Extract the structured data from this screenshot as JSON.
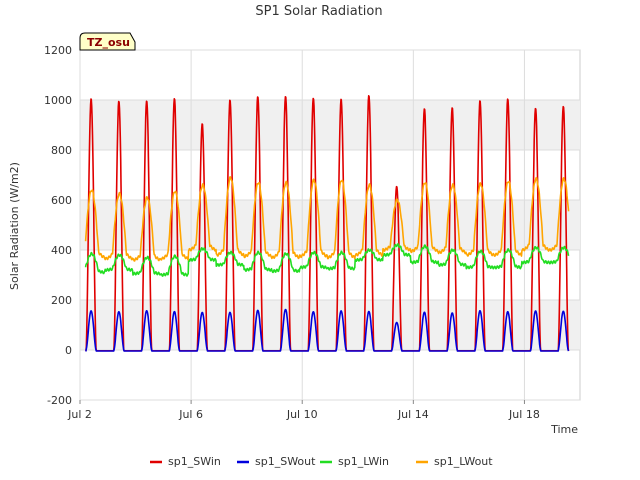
{
  "chart_data": {
    "type": "line",
    "title": "SP1 Solar Radiation",
    "xlabel": "Time",
    "ylabel": "Solar Radiation (W/m2)",
    "badge": "TZ_osu",
    "ylim": [
      -200,
      1200
    ],
    "xlim_days": [
      2.0,
      20.0
    ],
    "y_ticks": [
      -200,
      0,
      200,
      400,
      600,
      800,
      1000,
      1200
    ],
    "x_ticks": [
      {
        "day": 2,
        "label": "Jul 2"
      },
      {
        "day": 6,
        "label": "Jul 6"
      },
      {
        "day": 10,
        "label": "Jul 10"
      },
      {
        "day": 14,
        "label": "Jul 14"
      },
      {
        "day": 18,
        "label": "Jul 18"
      }
    ],
    "grid": true,
    "legend_position": "bottom",
    "data_start_day": 2.2,
    "data_end_day": 19.6,
    "series": [
      {
        "name": "sp1_SWin",
        "color": "#e00000",
        "daily_peak": [
          1000,
          1000,
          995,
          1005,
          910,
          995,
          1020,
          1010,
          1010,
          1005,
          1015,
          660,
          960,
          975,
          995,
          1005,
          970
        ],
        "night_value": 0
      },
      {
        "name": "sp1_SWout",
        "color": "#0000dd",
        "daily_peak": [
          155,
          155,
          155,
          155,
          150,
          150,
          160,
          160,
          155,
          155,
          155,
          110,
          150,
          150,
          155,
          155,
          155
        ],
        "night_value": 0
      },
      {
        "name": "sp1_LWin",
        "color": "#22dd22",
        "daily_min": [
          310,
          320,
          305,
          300,
          360,
          340,
          320,
          315,
          330,
          325,
          360,
          380,
          350,
          340,
          330,
          330,
          350
        ],
        "daily_max": [
          385,
          380,
          370,
          375,
          405,
          390,
          390,
          385,
          390,
          390,
          400,
          420,
          415,
          400,
          395,
          400,
          410
        ]
      },
      {
        "name": "sp1_LWout",
        "color": "#ffa500",
        "daily_min": [
          370,
          365,
          360,
          365,
          400,
          380,
          375,
          370,
          375,
          370,
          380,
          400,
          395,
          390,
          380,
          380,
          400
        ],
        "daily_max": [
          640,
          625,
          610,
          635,
          660,
          690,
          670,
          670,
          680,
          680,
          660,
          600,
          670,
          660,
          665,
          675,
          685
        ]
      }
    ]
  }
}
